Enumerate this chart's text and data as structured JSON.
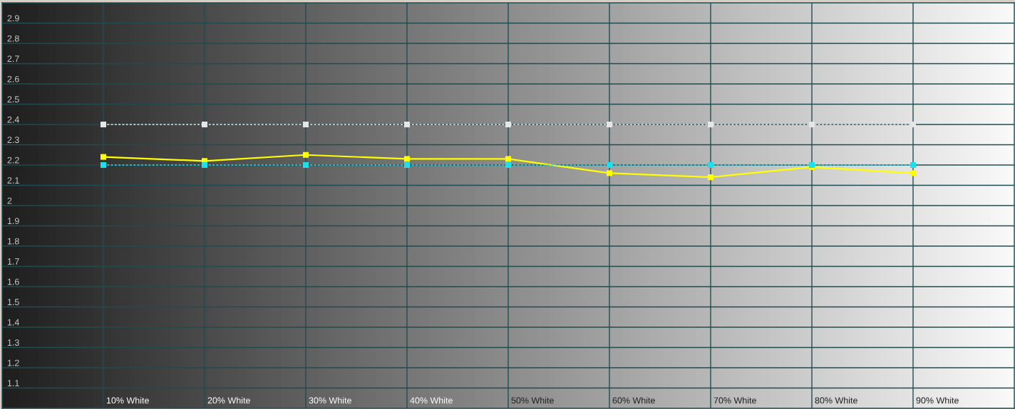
{
  "chart_data": {
    "type": "line",
    "categories": [
      "10% White",
      "20% White",
      "30% White",
      "40% White",
      "50% White",
      "60% White",
      "70% White",
      "80% White",
      "90% White"
    ],
    "ylim": [
      1,
      3
    ],
    "yticks": [
      1.1,
      1.2,
      1.3,
      1.4,
      1.5,
      1.6,
      1.7,
      1.8,
      1.9,
      2,
      2.1,
      2.2,
      2.3,
      2.4,
      2.5,
      2.6,
      2.7,
      2.8,
      2.9
    ],
    "grid": true,
    "series": [
      {
        "color": "#e6e6e6",
        "values": [
          2.4,
          2.4,
          2.4,
          2.4,
          2.4,
          2.4,
          2.4,
          2.4,
          2.4
        ],
        "line_style": "dashed",
        "marker": "square"
      },
      {
        "color": "#ffff00",
        "values": [
          2.24,
          2.22,
          2.25,
          2.23,
          2.23,
          2.16,
          2.14,
          2.19,
          2.16
        ],
        "line_style": "solid",
        "marker": "square"
      },
      {
        "color": "#1fe0ea",
        "values": [
          2.2,
          2.2,
          2.2,
          2.2,
          2.2,
          2.2,
          2.2,
          2.2,
          2.2
        ],
        "line_style": "dashed",
        "marker": "square"
      }
    ]
  }
}
